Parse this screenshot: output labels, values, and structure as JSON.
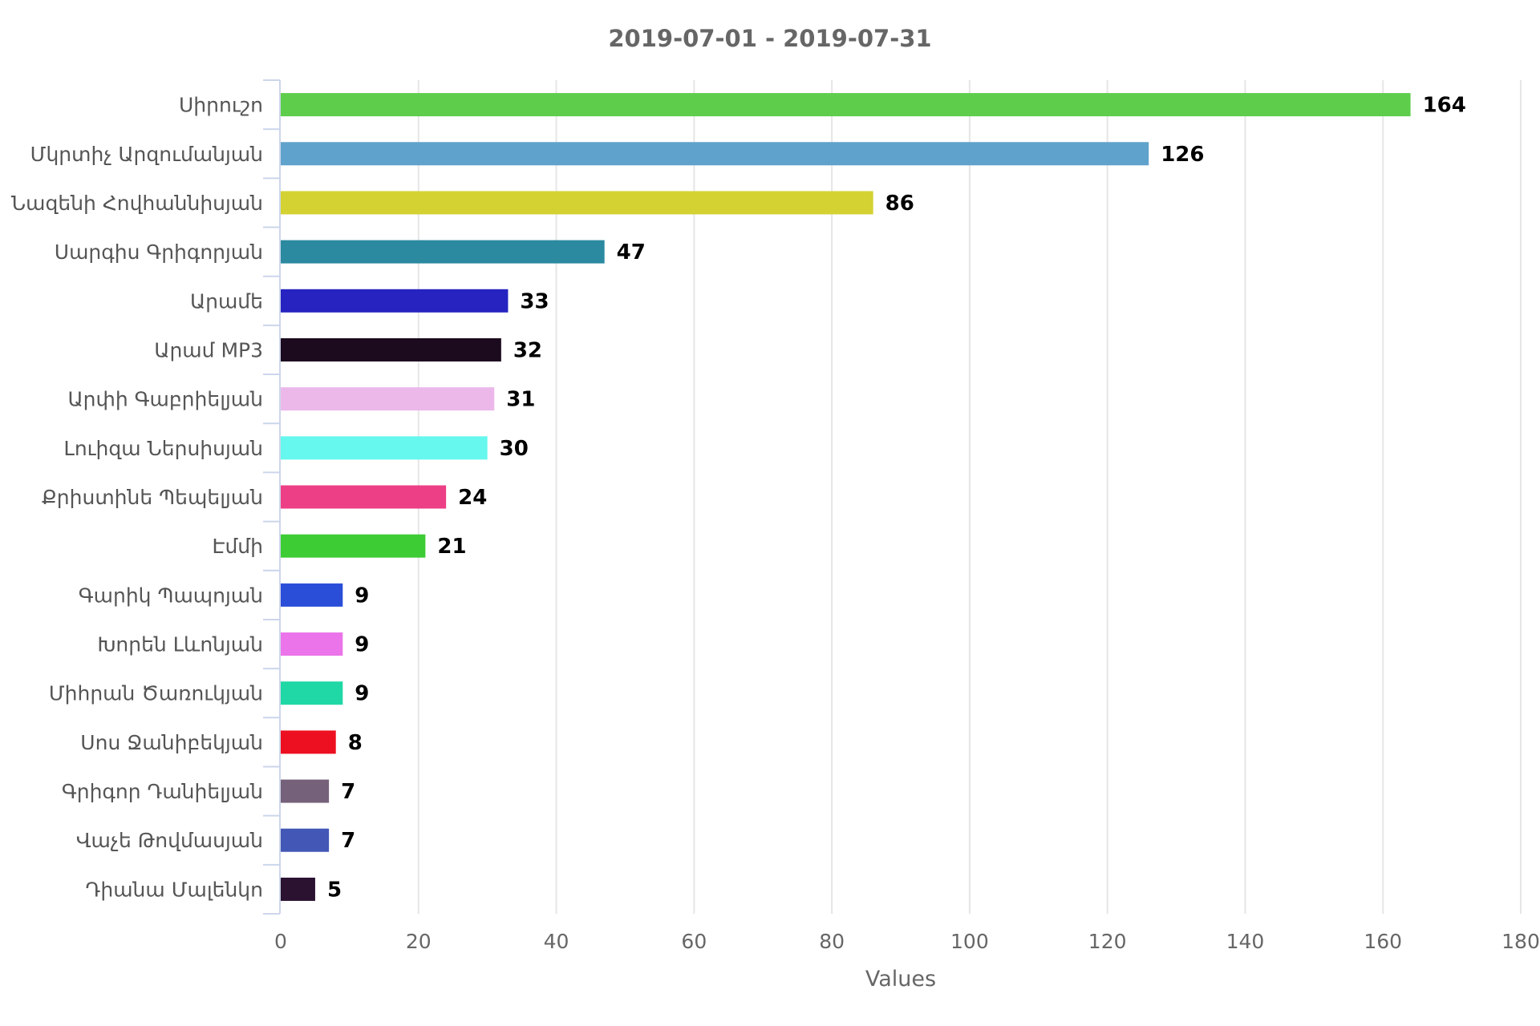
{
  "chart_data": {
    "type": "bar",
    "orientation": "horizontal",
    "title": "2019-07-01 - 2019-07-31",
    "xlabel": "Values",
    "ylabel": "",
    "xlim": [
      0,
      180
    ],
    "x_ticks": [
      "0",
      "20",
      "40",
      "60",
      "80",
      "100",
      "120",
      "140",
      "160",
      "180"
    ],
    "grid": "vertical",
    "legend": "none",
    "data_labels": true,
    "categories": [
      "Սիրուշո",
      "Մկրտիչ Արզումանյան",
      "Նազենի Հովհաննիսյան",
      "Սարգիս Գրիգորյան",
      "Արամե",
      "Արամ MP3",
      "Արփի Գաբրիելյան",
      "Լուիզա Ներսիսյան",
      "Քրիստինե Պեպելյան",
      "Էմմի",
      "Գարիկ Պապոյան",
      "Խորեն Լևոնյան",
      "Միհրան Ծառուկյան",
      "Սոս Ջանիբեկյան",
      "Գրիգոր Դանիելյան",
      "Վաչե Թովմասյան",
      "Դիանա Մալենկո"
    ],
    "values": [
      164,
      126,
      86,
      47,
      33,
      32,
      31,
      30,
      24,
      21,
      9,
      9,
      9,
      8,
      7,
      7,
      5
    ],
    "colors": [
      "#5ecd4b",
      "#5fa2cc",
      "#d4d232",
      "#2b8aa0",
      "#2623c0",
      "#1c0a1e",
      "#ecb8ea",
      "#66f7ee",
      "#ec3f85",
      "#3ecc34",
      "#2b4ed9",
      "#ec74ea",
      "#1fd8a5",
      "#ec1020",
      "#76617a",
      "#4257b6",
      "#2a1230"
    ]
  },
  "style": {
    "grid_color": "#e6e6e6",
    "axis_color": "#ccd6eb"
  }
}
